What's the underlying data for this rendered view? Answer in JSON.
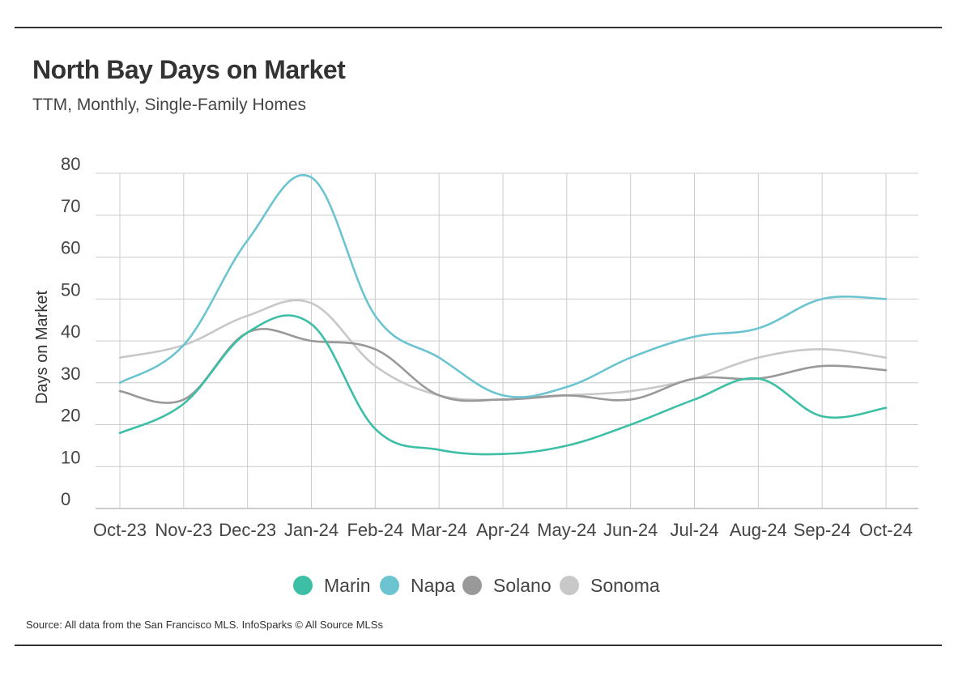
{
  "header": {
    "title": "North Bay Days on Market",
    "subtitle": "TTM, Monthly, Single-Family Homes"
  },
  "footer": {
    "source": "Source:  All data from the San Francisco MLS. InfoSparks © All Source MLSs"
  },
  "chart_data": {
    "type": "line",
    "ylabel": "Days on Market",
    "ylim": [
      0,
      80
    ],
    "yticks": [
      0,
      10,
      20,
      30,
      40,
      50,
      60,
      70,
      80
    ],
    "grid": true,
    "legend_position": "bottom",
    "categories": [
      "Oct-23",
      "Nov-23",
      "Dec-23",
      "Jan-24",
      "Feb-24",
      "Mar-24",
      "Apr-24",
      "May-24",
      "Jun-24",
      "Jul-24",
      "Aug-24",
      "Sep-24",
      "Oct-24"
    ],
    "series": [
      {
        "name": "Marin",
        "color": "#3dbfa6",
        "values": [
          18,
          25,
          42,
          44,
          19,
          14,
          13,
          15,
          20,
          26,
          31,
          22,
          24
        ]
      },
      {
        "name": "Napa",
        "color": "#6cc4d0",
        "values": [
          30,
          39,
          64,
          79,
          46,
          36,
          27,
          29,
          36,
          41,
          43,
          50,
          50
        ]
      },
      {
        "name": "Solano",
        "color": "#999999",
        "values": [
          28,
          26,
          42,
          40,
          38,
          27,
          26,
          27,
          26,
          31,
          31,
          34,
          33
        ]
      },
      {
        "name": "Sonoma",
        "color": "#c8c8c8",
        "values": [
          36,
          39,
          46,
          49,
          34,
          27,
          26,
          27,
          28,
          31,
          36,
          38,
          36
        ]
      }
    ]
  }
}
